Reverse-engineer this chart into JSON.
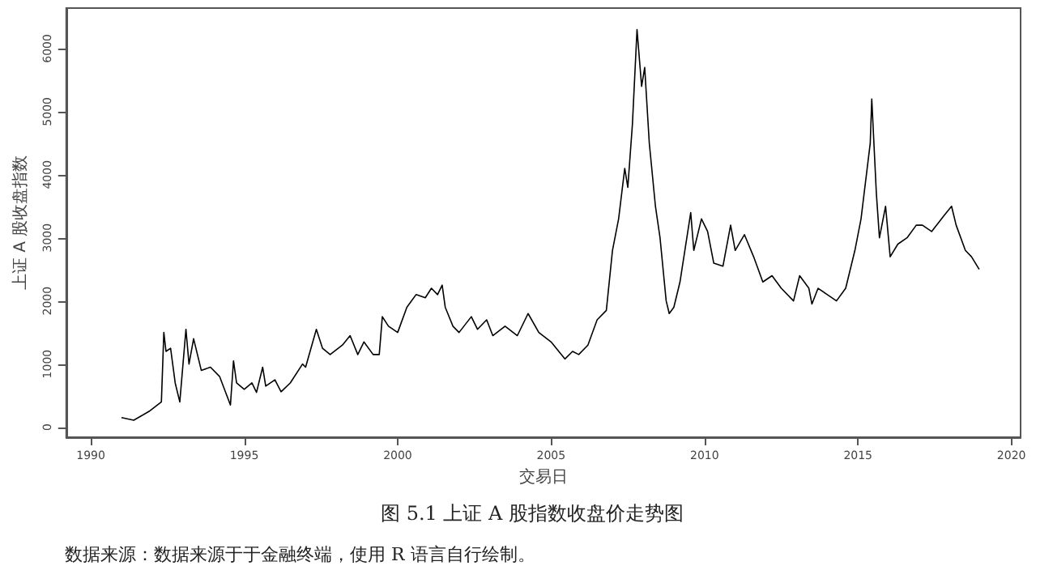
{
  "chart_data": {
    "type": "line",
    "title": "图 5.1 上证 A 股指数收盘价走势图",
    "xlabel": "交易日",
    "ylabel": "上证 A 股收盘指数",
    "annotations": [
      "数据来源：数据来源于于金融终端，使用 R 语言自行绘制。"
    ],
    "xlim": [
      1989.2,
      2020.3
    ],
    "xticks": [
      1990,
      1995,
      2000,
      2005,
      2010,
      2015,
      2020
    ],
    "ylim": [
      -160,
      6640
    ],
    "yticks": [
      0,
      1000,
      2000,
      3000,
      4000,
      5000,
      6000
    ],
    "grid": false,
    "marker": "none",
    "line_style": "solid",
    "series": [
      {
        "color": "#000000",
        "x": [
          1991.0,
          1991.4,
          1991.9,
          1992.3,
          1992.38,
          1992.45,
          1992.6,
          1992.75,
          1992.9,
          1993.1,
          1993.2,
          1993.35,
          1993.6,
          1993.9,
          1994.2,
          1994.55,
          1994.65,
          1994.75,
          1995.0,
          1995.25,
          1995.4,
          1995.6,
          1995.7,
          1996.0,
          1996.2,
          1996.5,
          1996.9,
          1997.0,
          1997.35,
          1997.55,
          1997.8,
          1998.2,
          1998.45,
          1998.7,
          1998.9,
          1999.2,
          1999.4,
          1999.5,
          1999.7,
          2000.0,
          2000.3,
          2000.6,
          2000.9,
          2001.1,
          2001.3,
          2001.45,
          2001.55,
          2001.8,
          2002.0,
          2002.4,
          2002.6,
          2002.9,
          2003.1,
          2003.5,
          2003.9,
          2004.25,
          2004.6,
          2005.0,
          2005.25,
          2005.45,
          2005.7,
          2005.9,
          2006.2,
          2006.5,
          2006.8,
          2007.0,
          2007.2,
          2007.4,
          2007.5,
          2007.65,
          2007.8,
          2007.95,
          2008.05,
          2008.2,
          2008.4,
          2008.55,
          2008.75,
          2008.85,
          2009.0,
          2009.2,
          2009.55,
          2009.65,
          2009.9,
          2010.1,
          2010.3,
          2010.6,
          2010.85,
          2011.0,
          2011.3,
          2011.6,
          2011.9,
          2012.2,
          2012.5,
          2012.9,
          2013.1,
          2013.4,
          2013.5,
          2013.7,
          2014.0,
          2014.3,
          2014.6,
          2014.9,
          2015.1,
          2015.4,
          2015.45,
          2015.6,
          2015.7,
          2015.9,
          2016.05,
          2016.3,
          2016.6,
          2016.9,
          2017.1,
          2017.4,
          2017.8,
          2018.05,
          2018.2,
          2018.5,
          2018.7,
          2018.95
        ],
        "values": [
          150,
          110,
          250,
          400,
          1500,
          1200,
          1250,
          700,
          400,
          1550,
          1000,
          1400,
          900,
          950,
          800,
          350,
          1050,
          700,
          600,
          700,
          550,
          950,
          650,
          750,
          560,
          700,
          1000,
          950,
          1550,
          1250,
          1150,
          1300,
          1450,
          1150,
          1350,
          1150,
          1150,
          1750,
          1600,
          1500,
          1900,
          2100,
          2050,
          2200,
          2100,
          2250,
          1900,
          1600,
          1500,
          1750,
          1550,
          1700,
          1450,
          1600,
          1450,
          1800,
          1500,
          1350,
          1200,
          1080,
          1200,
          1150,
          1300,
          1700,
          1850,
          2800,
          3300,
          4100,
          3800,
          4800,
          6300,
          5400,
          5700,
          4500,
          3500,
          3000,
          2000,
          1800,
          1900,
          2300,
          3400,
          2800,
          3300,
          3100,
          2600,
          2550,
          3200,
          2800,
          3050,
          2700,
          2300,
          2400,
          2200,
          2000,
          2400,
          2200,
          1950,
          2200,
          2100,
          2000,
          2200,
          2800,
          3300,
          4500,
          5200,
          3700,
          3000,
          3500,
          2700,
          2900,
          3000,
          3200,
          3200,
          3100,
          3350,
          3500,
          3200,
          2800,
          2700,
          2500
        ]
      }
    ]
  }
}
